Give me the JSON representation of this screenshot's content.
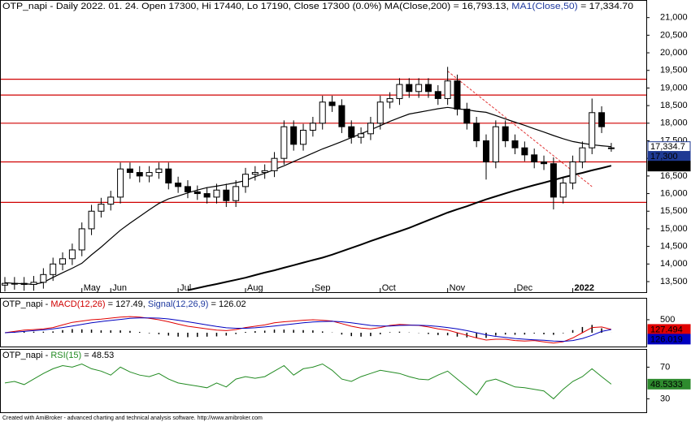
{
  "chart_data": [
    {
      "type": "candlestick",
      "title": [
        {
          "text": "OTP_napi - Daily 2022. 01. 24. Open 17300, Hi 17440, Lo 17190, Close 17300 (0.0%) MA(Close,200) = 16,793.13, ",
          "color": "#000000"
        },
        {
          "text": "MA1(Close,50)",
          "color": "#1f3aa0"
        },
        {
          "text": " = 17,334.70",
          "color": "#000000"
        }
      ],
      "categories": [
        null,
        null,
        null,
        null,
        null,
        null,
        null,
        null,
        "May",
        null,
        null,
        "Jun",
        null,
        null,
        null,
        null,
        null,
        null,
        "Jul",
        null,
        null,
        null,
        null,
        null,
        null,
        "Aug",
        null,
        null,
        null,
        null,
        null,
        null,
        "Sep",
        null,
        null,
        null,
        null,
        null,
        null,
        "Oct",
        null,
        null,
        null,
        null,
        null,
        null,
        "Nov",
        null,
        null,
        null,
        null,
        null,
        null,
        "Dec",
        null,
        null,
        null,
        null,
        null,
        "2022",
        null,
        null,
        null,
        null
      ],
      "open": [
        13400,
        13450,
        13450,
        13420,
        13480,
        13700,
        14000,
        14150,
        14400,
        15000,
        15500,
        15700,
        15900,
        16700,
        16600,
        16500,
        16600,
        16700,
        16300,
        16200,
        16050,
        16000,
        15900,
        16100,
        15800,
        16200,
        16550,
        16600,
        16650,
        17000,
        17900,
        17400,
        17800,
        18000,
        18600,
        18500,
        17900,
        17600,
        17700,
        18000,
        18600,
        18700,
        19100,
        18900,
        19100,
        18900,
        18700,
        19200,
        18400,
        18000,
        17500,
        16900,
        17900,
        17500,
        17300,
        17100,
        16900,
        16850,
        15900,
        16300,
        16900,
        17300,
        18300,
        17300
      ],
      "high": [
        13630,
        13630,
        13630,
        13660,
        13880,
        14180,
        14330,
        14580,
        15180,
        15680,
        15880,
        16080,
        16880,
        16880,
        16780,
        16780,
        16880,
        16880,
        16480,
        16380,
        16230,
        16180,
        16280,
        16280,
        16380,
        16730,
        16780,
        16830,
        17180,
        18080,
        18080,
        17980,
        18180,
        18780,
        18780,
        18680,
        18080,
        17880,
        18180,
        18780,
        18880,
        19280,
        19280,
        19280,
        19280,
        19080,
        19600,
        19380,
        18580,
        18180,
        17680,
        18080,
        18080,
        17680,
        17480,
        17280,
        17080,
        17030,
        16480,
        17080,
        17480,
        18700,
        18480,
        17440
      ],
      "low": [
        13220,
        13270,
        13240,
        13240,
        13300,
        13520,
        13820,
        13970,
        14220,
        14820,
        15320,
        15520,
        15720,
        16420,
        16320,
        16320,
        16420,
        16120,
        16020,
        15870,
        15820,
        15720,
        15720,
        15620,
        15620,
        16020,
        16370,
        16420,
        16470,
        16820,
        17220,
        17220,
        17620,
        17820,
        18320,
        17720,
        17420,
        17420,
        17520,
        17820,
        18420,
        18520,
        18720,
        18720,
        18720,
        18520,
        18520,
        18220,
        17820,
        17320,
        16400,
        16720,
        17320,
        17120,
        16920,
        16720,
        16670,
        15550,
        15720,
        16120,
        16720,
        17120,
        17720,
        17190
      ],
      "close": [
        13450,
        13450,
        13420,
        13480,
        13700,
        14000,
        14150,
        14400,
        15000,
        15500,
        15700,
        15900,
        16700,
        16600,
        16500,
        16600,
        16700,
        16300,
        16200,
        16050,
        16000,
        15900,
        16100,
        15800,
        16200,
        16550,
        16600,
        16650,
        17000,
        17900,
        17400,
        17800,
        18000,
        18600,
        18500,
        17900,
        17600,
        17700,
        18000,
        18600,
        18700,
        19100,
        18900,
        19100,
        18900,
        18700,
        19200,
        18400,
        18000,
        17500,
        16900,
        17900,
        17500,
        17300,
        17100,
        16900,
        16850,
        15900,
        16300,
        16900,
        17300,
        18300,
        17900,
        17300
      ],
      "candle_color": "#000000",
      "ma200": {
        "color": "#000000",
        "values": [
          null,
          null,
          null,
          null,
          null,
          null,
          null,
          null,
          null,
          null,
          null,
          null,
          null,
          null,
          null,
          null,
          null,
          null,
          null,
          13255,
          13315,
          13375,
          13430,
          13490,
          13550,
          13610,
          13685,
          13755,
          13820,
          13895,
          13965,
          14040,
          14110,
          14180,
          14265,
          14360,
          14455,
          14550,
          14650,
          14745,
          14840,
          14930,
          15025,
          15135,
          15245,
          15350,
          15460,
          15555,
          15640,
          15740,
          15835,
          15920,
          16005,
          16090,
          16165,
          16240,
          16310,
          16385,
          16460,
          16530,
          16590,
          16660,
          16725,
          16793.13
        ]
      },
      "ma50": {
        "color": "#000000",
        "values": [
          13470,
          13450,
          13440,
          13420,
          13480,
          13620,
          13750,
          13880,
          14020,
          14260,
          14480,
          14720,
          14960,
          15160,
          15350,
          15540,
          15720,
          15850,
          15930,
          16020,
          16100,
          16170,
          16210,
          16260,
          16310,
          16370,
          16480,
          16580,
          16680,
          16790,
          16910,
          17030,
          17150,
          17270,
          17370,
          17480,
          17590,
          17700,
          17810,
          17930,
          18050,
          18160,
          18260,
          18310,
          18360,
          18410,
          18450,
          18410,
          18380,
          18340,
          18310,
          18220,
          18120,
          18030,
          17940,
          17840,
          17750,
          17650,
          17560,
          17480,
          17430,
          17390,
          17360,
          17334.7
        ]
      },
      "trendline": {
        "color": "#e03030",
        "values": [
          null,
          null,
          null,
          null,
          null,
          null,
          null,
          null,
          null,
          null,
          null,
          null,
          null,
          null,
          null,
          null,
          null,
          null,
          null,
          null,
          null,
          null,
          null,
          null,
          null,
          null,
          null,
          null,
          null,
          null,
          null,
          null,
          null,
          null,
          null,
          null,
          null,
          null,
          null,
          null,
          null,
          null,
          null,
          null,
          null,
          null,
          19480,
          19261,
          19043,
          18824,
          18605,
          18387,
          18168,
          17949,
          17731,
          17512,
          17293,
          17075,
          16856,
          16637,
          16419,
          16200,
          null,
          null
        ]
      },
      "hlines": {
        "color": "#d00000",
        "values": [
          19250,
          18800,
          18000,
          16900,
          15750
        ]
      },
      "ylim": [
        13200,
        21500
      ],
      "yticks": [
        {
          "value": 13500,
          "label": "13,500"
        },
        {
          "value": 14000,
          "label": "14,000"
        },
        {
          "value": 14500,
          "label": "14,500"
        },
        {
          "value": 15000,
          "label": "15,000"
        },
        {
          "value": 15500,
          "label": "15,500"
        },
        {
          "value": 16000,
          "label": "16,000"
        },
        {
          "value": 16500,
          "label": "16,500"
        },
        {
          "value": 17000,
          "label": "17,000"
        },
        {
          "value": 17500,
          "label": "17,500"
        },
        {
          "value": 18000,
          "label": "18,000"
        },
        {
          "value": 18500,
          "label": "18,500"
        },
        {
          "value": 19000,
          "label": "19,000"
        },
        {
          "value": 19500,
          "label": "19,500"
        },
        {
          "value": 20000,
          "label": "20,000"
        },
        {
          "value": 20500,
          "label": "20,500"
        },
        {
          "value": 21000,
          "label": "21,000"
        }
      ],
      "last_labels": [
        {
          "value": 17334.7,
          "label": "17,334.7"
        },
        {
          "value": 17300,
          "label": "17,300"
        },
        {
          "value": 16793.13,
          "label": "16,793.1"
        }
      ],
      "last_label_colors": [
        "#ffffff",
        "#1f3a93",
        "#000000"
      ]
    },
    {
      "type": "line",
      "title": [
        {
          "text": "OTP_napi - ",
          "color": "#000000"
        },
        {
          "text": "MACD(12,26)",
          "color": "#d00000"
        },
        {
          "text": " = 127.49, ",
          "color": "#000000"
        },
        {
          "text": "Signal(12,26,9)",
          "color": "#1f3aa0"
        },
        {
          "text": " = 126.02",
          "color": "#000000"
        }
      ],
      "series": [
        {
          "color": "#e00000",
          "values": [
            0,
            50,
            100,
            120,
            150,
            200,
            300,
            400,
            450,
            500,
            520,
            560,
            600,
            620,
            600,
            550,
            500,
            420,
            330,
            250,
            200,
            150,
            100,
            80,
            120,
            200,
            250,
            300,
            380,
            420,
            450,
            480,
            500,
            480,
            450,
            350,
            250,
            180,
            150,
            200,
            280,
            320,
            300,
            280,
            220,
            150,
            100,
            0,
            -100,
            -200,
            -280,
            -250,
            -250,
            -300,
            -320,
            -300,
            -350,
            -400,
            -350,
            -200,
            0,
            200,
            220,
            127.49
          ]
        },
        {
          "color": "#0000c0",
          "values": [
            0,
            20,
            50,
            80,
            110,
            150,
            200,
            260,
            320,
            380,
            430,
            470,
            510,
            550,
            570,
            570,
            560,
            530,
            480,
            420,
            360,
            300,
            240,
            190,
            170,
            170,
            190,
            220,
            260,
            300,
            340,
            380,
            410,
            430,
            440,
            420,
            380,
            330,
            280,
            260,
            260,
            280,
            290,
            290,
            270,
            240,
            200,
            150,
            80,
            0,
            -80,
            -140,
            -180,
            -220,
            -250,
            -270,
            -290,
            -320,
            -330,
            -300,
            -220,
            -100,
            50,
            126.02
          ]
        }
      ],
      "histogram": {
        "color": "#000000",
        "values": [
          0,
          30,
          50,
          40,
          40,
          50,
          100,
          140,
          130,
          120,
          90,
          90,
          90,
          70,
          30,
          -20,
          -60,
          -110,
          -150,
          -170,
          -160,
          -150,
          -140,
          -110,
          -50,
          30,
          60,
          80,
          120,
          120,
          110,
          100,
          90,
          50,
          10,
          -70,
          -130,
          -150,
          -130,
          -60,
          20,
          40,
          10,
          -10,
          -50,
          -90,
          -100,
          -150,
          -180,
          -200,
          -200,
          -110,
          -70,
          -80,
          -70,
          -30,
          -60,
          -80,
          -20,
          100,
          220,
          300,
          170,
          1.47
        ]
      },
      "ylim": [
        -530,
        1340
      ],
      "yticks": [
        500
      ],
      "last_labels": [
        {
          "value": 127.494,
          "label": "127.494"
        },
        {
          "value": 126.019,
          "label": "126.019"
        }
      ],
      "last_label_colors": [
        "#e00000",
        "#0000c0"
      ]
    },
    {
      "type": "line",
      "title": [
        {
          "text": "OTP_napi - ",
          "color": "#000000"
        },
        {
          "text": "RSI(15)",
          "color": "#228b22"
        },
        {
          "text": " = 48.53",
          "color": "#000000"
        }
      ],
      "series": [
        {
          "color": "#228b22",
          "values": [
            50,
            52,
            48,
            55,
            62,
            68,
            72,
            70,
            74,
            68,
            65,
            60,
            70,
            64,
            60,
            58,
            62,
            55,
            50,
            48,
            46,
            44,
            50,
            45,
            55,
            58,
            56,
            58,
            65,
            72,
            60,
            68,
            70,
            74,
            66,
            55,
            52,
            58,
            62,
            66,
            64,
            62,
            58,
            55,
            54,
            60,
            65,
            55,
            45,
            35,
            52,
            55,
            50,
            45,
            44,
            42,
            40,
            30,
            42,
            52,
            58,
            68,
            58,
            48.53
          ]
        }
      ],
      "ylim": [
        13,
        93
      ],
      "yticks": [
        30,
        70
      ],
      "last_labels": [
        {
          "value": 48.5333,
          "label": "48.5333"
        }
      ],
      "last_label_colors": [
        "#2e8b2e"
      ]
    }
  ],
  "footer": "Created with AmiBroker - advanced charting and technical analysis software. http://www.amibroker.com"
}
